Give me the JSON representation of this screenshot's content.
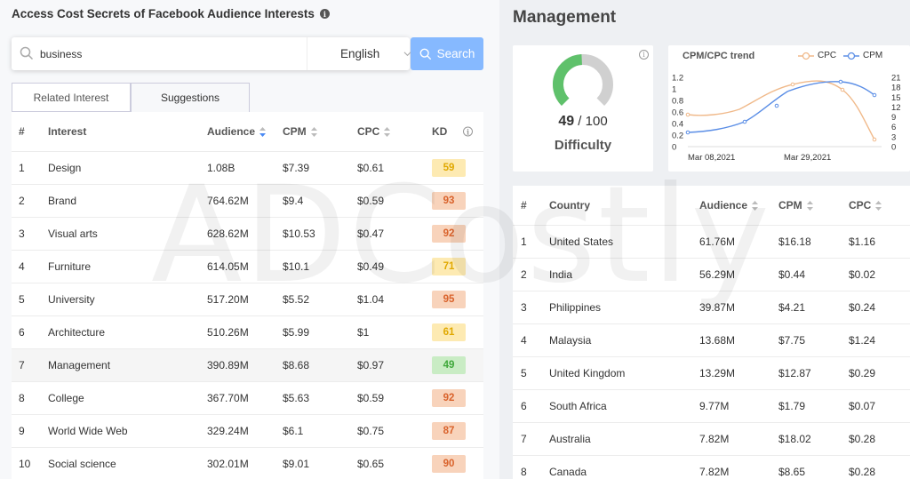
{
  "left": {
    "title": "Access Cost Secrets of Facebook Audience Interests",
    "search": {
      "value": "business",
      "placeholder": ""
    },
    "language": "English",
    "search_button": "Search",
    "tabs": [
      "Related Interest",
      "Suggestions"
    ],
    "table": {
      "headers": {
        "num": "#",
        "interest": "Interest",
        "audience": "Audience",
        "cpm": "CPM",
        "cpc": "CPC",
        "kd": "KD"
      },
      "rows": [
        {
          "n": "1",
          "interest": "Design",
          "audience": "1.08B",
          "cpm": "$7.39",
          "cpc": "$0.61",
          "kd": "59",
          "kd_color": "#fdeab2",
          "kd_text": "#e0a800"
        },
        {
          "n": "2",
          "interest": "Brand",
          "audience": "764.62M",
          "cpm": "$9.4",
          "cpc": "$0.59",
          "kd": "93",
          "kd_color": "#f8d3bb",
          "kd_text": "#d9622b"
        },
        {
          "n": "3",
          "interest": "Visual arts",
          "audience": "628.62M",
          "cpm": "$10.53",
          "cpc": "$0.47",
          "kd": "92",
          "kd_color": "#f8d3bb",
          "kd_text": "#d9622b"
        },
        {
          "n": "4",
          "interest": "Furniture",
          "audience": "614.05M",
          "cpm": "$10.1",
          "cpc": "$0.49",
          "kd": "71",
          "kd_color": "#fdeab2",
          "kd_text": "#e0a800"
        },
        {
          "n": "5",
          "interest": "University",
          "audience": "517.20M",
          "cpm": "$5.52",
          "cpc": "$1.04",
          "kd": "95",
          "kd_color": "#f8d3bb",
          "kd_text": "#d9622b"
        },
        {
          "n": "6",
          "interest": "Architecture",
          "audience": "510.26M",
          "cpm": "$5.99",
          "cpc": "$1",
          "kd": "61",
          "kd_color": "#fdeab2",
          "kd_text": "#e0a800"
        },
        {
          "n": "7",
          "interest": "Management",
          "audience": "390.89M",
          "cpm": "$8.68",
          "cpc": "$0.97",
          "kd": "49",
          "kd_color": "#c9ecc4",
          "kd_text": "#3fa83a"
        },
        {
          "n": "8",
          "interest": "College",
          "audience": "367.70M",
          "cpm": "$5.63",
          "cpc": "$0.59",
          "kd": "92",
          "kd_color": "#f8d3bb",
          "kd_text": "#d9622b"
        },
        {
          "n": "9",
          "interest": "World Wide Web",
          "audience": "329.24M",
          "cpm": "$6.1",
          "cpc": "$0.75",
          "kd": "87",
          "kd_color": "#f8d3bb",
          "kd_text": "#d9622b"
        },
        {
          "n": "10",
          "interest": "Social science",
          "audience": "302.01M",
          "cpm": "$9.01",
          "cpc": "$0.65",
          "kd": "90",
          "kd_color": "#f8d3bb",
          "kd_text": "#d9622b"
        }
      ]
    }
  },
  "right": {
    "title": "Management",
    "difficulty": {
      "score": "49",
      "max": "/ 100",
      "label": "Difficulty",
      "fraction": 0.49,
      "color": "#5fc16b",
      "track": "#d0d0d0"
    },
    "trend": {
      "title": "CPM/CPC trend",
      "legend": [
        "CPC",
        "CPM"
      ],
      "cpc_color": "#f0b98a",
      "cpm_color": "#5b8ee6",
      "left_ticks": [
        "1.2",
        "1",
        "0.8",
        "0.6",
        "0.4",
        "0.2",
        "0"
      ],
      "right_ticks": [
        "21",
        "18",
        "15",
        "12",
        "9",
        "6",
        "3",
        "0"
      ],
      "x_labels": [
        "Mar 08,2021",
        "Mar 29,2021"
      ]
    },
    "table": {
      "headers": {
        "num": "#",
        "country": "Country",
        "audience": "Audience",
        "cpm": "CPM",
        "cpc": "CPC"
      },
      "rows": [
        {
          "n": "1",
          "country": "United States",
          "audience": "61.76M",
          "cpm": "$16.18",
          "cpc": "$1.16"
        },
        {
          "n": "2",
          "country": "India",
          "audience": "56.29M",
          "cpm": "$0.44",
          "cpc": "$0.02"
        },
        {
          "n": "3",
          "country": "Philippines",
          "audience": "39.87M",
          "cpm": "$4.21",
          "cpc": "$0.24"
        },
        {
          "n": "4",
          "country": "Malaysia",
          "audience": "13.68M",
          "cpm": "$7.75",
          "cpc": "$1.24"
        },
        {
          "n": "5",
          "country": "United Kingdom",
          "audience": "13.29M",
          "cpm": "$12.87",
          "cpc": "$0.29"
        },
        {
          "n": "6",
          "country": "South Africa",
          "audience": "9.77M",
          "cpm": "$1.79",
          "cpc": "$0.07"
        },
        {
          "n": "7",
          "country": "Australia",
          "audience": "7.82M",
          "cpm": "$18.02",
          "cpc": "$0.28"
        },
        {
          "n": "8",
          "country": "Canada",
          "audience": "7.82M",
          "cpm": "$8.65",
          "cpc": "$0.28"
        }
      ]
    }
  },
  "watermark": "ADCostly"
}
